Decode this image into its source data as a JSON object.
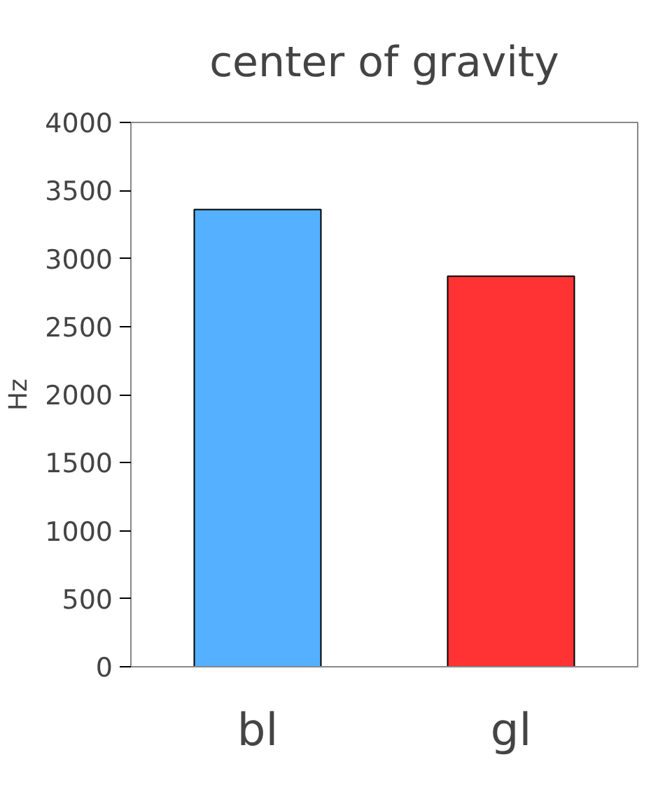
{
  "chart_data": {
    "type": "bar",
    "title": "center of gravity",
    "ylabel": "Hz",
    "categories": [
      "bl",
      "gl"
    ],
    "values": [
      3360,
      2870
    ],
    "colors": [
      "#55b0ff",
      "#ff3333"
    ],
    "ylim": [
      0,
      4000
    ],
    "yticks": [
      0,
      500,
      1000,
      1500,
      2000,
      2500,
      3000,
      3500,
      4000
    ],
    "grid": false
  }
}
